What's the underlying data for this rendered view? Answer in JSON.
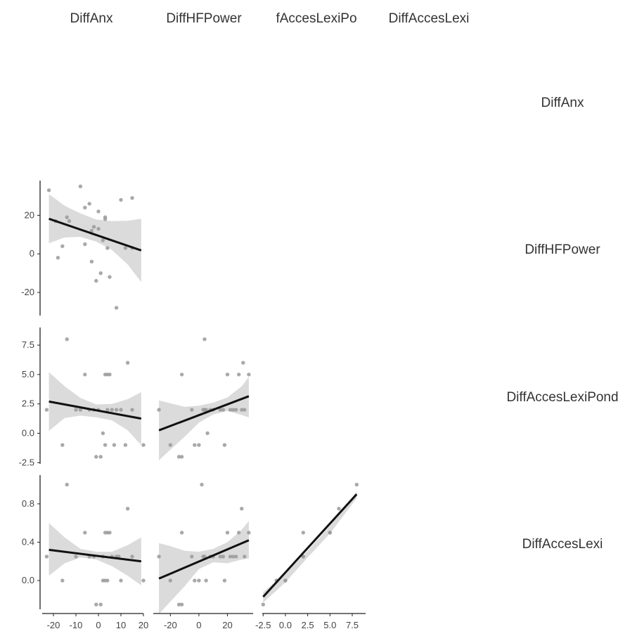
{
  "variables": [
    "DiffAnx",
    "DiffHFPower",
    "DiffAccesLexiPond",
    "DiffAccesLexi"
  ],
  "column_headers": [
    "DiffAnx",
    "DiffHFPower",
    "fAccesLexiPo",
    "DiffAccesLexi"
  ],
  "row_headers": [
    "DiffAnx",
    "DiffHFPower",
    "DiffAccesLexiPond",
    "DiffAccesLexi"
  ],
  "chart_data": {
    "type": "scatter",
    "layout": "scatterplot matrix (lower triangle) with linear fit and confidence band",
    "axes": {
      "DiffAnx": {
        "range": [
          -25,
          20
        ],
        "ticks": [
          -20,
          -10,
          0,
          10,
          20
        ],
        "tick_labels": [
          "-20",
          "-10",
          "0",
          "10",
          "20"
        ]
      },
      "DiffHFPower": {
        "range": [
          -32,
          38
        ],
        "ticks": [
          -20,
          0,
          20
        ],
        "tick_labels": [
          "-20",
          "0",
          "20"
        ]
      },
      "DiffAccesLexiPond": {
        "range": [
          -2.6,
          9.0
        ],
        "ticks": [
          -2.5,
          0,
          2.5,
          5,
          7.5
        ],
        "tick_labels": [
          "-2.5",
          "0.0",
          "2.5",
          "5.0",
          "7.5"
        ]
      },
      "DiffAccesLexi": {
        "range": [
          -0.3,
          1.1
        ],
        "ticks": [
          0,
          0.4,
          0.8
        ],
        "tick_labels": [
          "0.0",
          "0.4",
          "0.8"
        ]
      }
    },
    "bottom_tick_labels": {
      "DiffAnx": [
        "-20",
        "-10",
        "0",
        "10",
        "20"
      ],
      "DiffHFPower": [
        "-20",
        "0",
        "20"
      ],
      "DiffAccesLexiPond": [
        "-2.5",
        "0.0",
        "2.5",
        "5.0",
        "7.5"
      ]
    },
    "panels": [
      {
        "x": "DiffAnx",
        "y": "DiffHFPower",
        "points": [
          [
            -22,
            33
          ],
          [
            -19,
            17
          ],
          [
            -18,
            -2
          ],
          [
            -16,
            4
          ],
          [
            -14,
            19
          ],
          [
            -13,
            17
          ],
          [
            -8,
            35
          ],
          [
            -6,
            5
          ],
          [
            -6,
            24
          ],
          [
            -4,
            26
          ],
          [
            -3,
            12
          ],
          [
            -2,
            14
          ],
          [
            -3,
            -4
          ],
          [
            -1,
            -14
          ],
          [
            0,
            22
          ],
          [
            0,
            13
          ],
          [
            1,
            -10
          ],
          [
            2,
            7
          ],
          [
            3,
            19
          ],
          [
            3,
            18
          ],
          [
            4,
            3
          ],
          [
            5,
            -12
          ],
          [
            8,
            -28
          ],
          [
            10,
            28
          ],
          [
            12,
            3
          ],
          [
            15,
            29
          ],
          [
            15,
            3
          ]
        ],
        "fit": {
          "x": [
            -22,
            19
          ],
          "y": [
            18.2,
            1.8
          ]
        },
        "band": {
          "x": [
            -22,
            -15,
            -8,
            -1,
            6,
            13,
            19
          ],
          "upper": [
            31,
            25,
            21,
            17.8,
            17,
            17.2,
            18.2
          ],
          "lower": [
            5.5,
            8.5,
            8.8,
            6.4,
            2,
            -5.5,
            -14.6
          ]
        }
      },
      {
        "x": "DiffAnx",
        "y": "DiffAccesLexiPond",
        "points": [
          [
            -23,
            2
          ],
          [
            -16,
            -1
          ],
          [
            -14,
            8
          ],
          [
            -10,
            2
          ],
          [
            -8,
            2
          ],
          [
            -6,
            5
          ],
          [
            -4,
            2
          ],
          [
            -2,
            2
          ],
          [
            -1,
            -2
          ],
          [
            0,
            2
          ],
          [
            1,
            -2
          ],
          [
            2,
            0
          ],
          [
            3,
            5
          ],
          [
            3,
            -1
          ],
          [
            4,
            2
          ],
          [
            4,
            5
          ],
          [
            5,
            5
          ],
          [
            6,
            2
          ],
          [
            7,
            -1
          ],
          [
            8,
            2
          ],
          [
            10,
            2
          ],
          [
            12,
            -1
          ],
          [
            13,
            6
          ],
          [
            15,
            2
          ],
          [
            20,
            -1
          ]
        ],
        "fit": {
          "x": [
            -22,
            19
          ],
          "y": [
            2.7,
            1.25
          ]
        },
        "band": {
          "x": [
            -22,
            -15,
            -8,
            -1,
            6,
            13,
            19
          ],
          "upper": [
            5.2,
            4.0,
            3.0,
            2.45,
            2.5,
            2.9,
            3.5
          ],
          "lower": [
            0.2,
            1.3,
            1.5,
            1.35,
            1.1,
            0.25,
            -1.0
          ]
        }
      },
      {
        "x": "DiffHFPower",
        "y": "DiffAccesLexiPond",
        "points": [
          [
            -28,
            2
          ],
          [
            -20,
            -1
          ],
          [
            -14,
            -2
          ],
          [
            -12,
            -2
          ],
          [
            -12,
            5
          ],
          [
            -5,
            2
          ],
          [
            -3,
            -1
          ],
          [
            0,
            -1
          ],
          [
            3,
            2
          ],
          [
            4,
            2
          ],
          [
            4,
            8
          ],
          [
            5,
            2
          ],
          [
            6,
            0
          ],
          [
            8,
            2
          ],
          [
            10,
            2
          ],
          [
            15,
            2
          ],
          [
            17,
            2
          ],
          [
            18,
            -1
          ],
          [
            20,
            5
          ],
          [
            22,
            2
          ],
          [
            24,
            2
          ],
          [
            26,
            2
          ],
          [
            28,
            5
          ],
          [
            30,
            2
          ],
          [
            31,
            6
          ],
          [
            32,
            2
          ],
          [
            35,
            5
          ]
        ],
        "fit": {
          "x": [
            -28,
            35
          ],
          "y": [
            0.25,
            3.15
          ]
        },
        "band": {
          "x": [
            -28,
            -20,
            -10,
            0,
            10,
            20,
            30,
            35
          ],
          "upper": [
            2.8,
            2.55,
            2.25,
            2.35,
            2.6,
            3.05,
            4.0,
            4.8
          ],
          "lower": [
            -2.3,
            -1.4,
            -0.3,
            0.9,
            1.6,
            1.9,
            1.55,
            1.35
          ]
        }
      },
      {
        "x": "DiffAnx",
        "y": "DiffAccesLexi",
        "points": [
          [
            -23,
            0.25
          ],
          [
            -16,
            0
          ],
          [
            -14,
            1.0
          ],
          [
            -10,
            0.25
          ],
          [
            -6,
            0.5
          ],
          [
            -4,
            0.25
          ],
          [
            -2,
            0.25
          ],
          [
            -1,
            -0.25
          ],
          [
            1,
            -0.25
          ],
          [
            2,
            0.25
          ],
          [
            2,
            0
          ],
          [
            3,
            0.5
          ],
          [
            3,
            0
          ],
          [
            4,
            0
          ],
          [
            4,
            0.5
          ],
          [
            5,
            0.5
          ],
          [
            6,
            0.25
          ],
          [
            8,
            0.25
          ],
          [
            9,
            0.25
          ],
          [
            10,
            0
          ],
          [
            13,
            0.75
          ],
          [
            15,
            0.25
          ],
          [
            20,
            0
          ]
        ],
        "fit": {
          "x": [
            -22,
            19
          ],
          "y": [
            0.32,
            0.2
          ]
        },
        "band": {
          "x": [
            -22,
            -15,
            -8,
            -1,
            6,
            13,
            19
          ],
          "upper": [
            0.6,
            0.45,
            0.33,
            0.3,
            0.3,
            0.37,
            0.45
          ],
          "lower": [
            0.05,
            0.18,
            0.24,
            0.22,
            0.15,
            0.05,
            -0.05
          ]
        }
      },
      {
        "x": "DiffHFPower",
        "y": "DiffAccesLexi",
        "points": [
          [
            -28,
            0.25
          ],
          [
            -20,
            0
          ],
          [
            -14,
            -0.25
          ],
          [
            -12,
            -0.25
          ],
          [
            -12,
            0.5
          ],
          [
            -5,
            0.25
          ],
          [
            -3,
            0
          ],
          [
            0,
            0
          ],
          [
            2,
            1.0
          ],
          [
            3,
            0.25
          ],
          [
            4,
            0.25
          ],
          [
            5,
            0
          ],
          [
            8,
            0.25
          ],
          [
            10,
            0.25
          ],
          [
            15,
            0.25
          ],
          [
            17,
            0.25
          ],
          [
            18,
            0
          ],
          [
            20,
            0.5
          ],
          [
            22,
            0.25
          ],
          [
            24,
            0.25
          ],
          [
            26,
            0.25
          ],
          [
            28,
            0.5
          ],
          [
            30,
            0.75
          ],
          [
            32,
            0.25
          ],
          [
            35,
            0.5
          ]
        ],
        "fit": {
          "x": [
            -28,
            35
          ],
          "y": [
            0.02,
            0.42
          ]
        },
        "band": {
          "x": [
            -28,
            -20,
            -10,
            0,
            10,
            20,
            30,
            35
          ],
          "upper": [
            0.39,
            0.36,
            0.31,
            0.3,
            0.33,
            0.4,
            0.53,
            0.62
          ],
          "lower": [
            -0.35,
            -0.22,
            -0.06,
            0.12,
            0.19,
            0.18,
            0.22,
            0.23
          ]
        }
      },
      {
        "x": "DiffAccesLexiPond",
        "y": "DiffAccesLexi",
        "points": [
          [
            -2.5,
            -0.25
          ],
          [
            -1,
            0
          ],
          [
            -1,
            0
          ],
          [
            0,
            0
          ],
          [
            0,
            0
          ],
          [
            2,
            0.25
          ],
          [
            2,
            0.5
          ],
          [
            2,
            0.25
          ],
          [
            5,
            0.5
          ],
          [
            5,
            0.5
          ],
          [
            6,
            0.75
          ],
          [
            8,
            1.0
          ]
        ],
        "fit": {
          "x": [
            -2.5,
            8
          ],
          "y": [
            -0.17,
            0.9
          ]
        },
        "band": {
          "x": [
            -2.5,
            0,
            2.5,
            5,
            8
          ],
          "upper": [
            -0.12,
            0.07,
            0.31,
            0.57,
            0.93
          ],
          "lower": [
            -0.23,
            -0.02,
            0.24,
            0.49,
            0.86
          ]
        }
      }
    ]
  }
}
